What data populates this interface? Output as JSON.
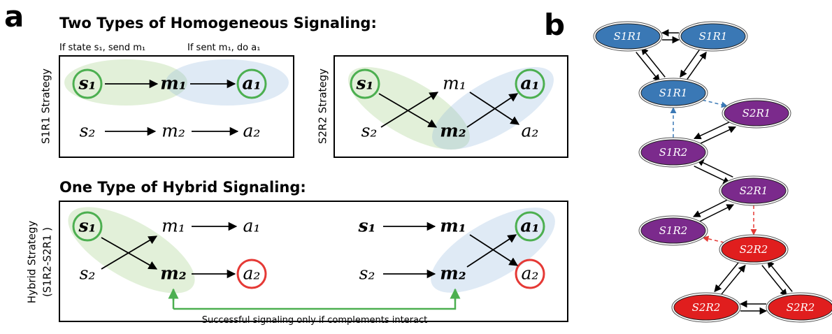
{
  "panel_a": {
    "label": "a",
    "homogeneous_title": "Two Types of Homogeneous Signaling:",
    "annotations": [
      "If state s₁, send m₁",
      "If sent m₁, do a₁"
    ],
    "s1r1": {
      "side_label": "S1R1 Strategy",
      "nodes": [
        "s₁",
        "m₁",
        "a₁",
        "s₂",
        "m₂",
        "a₂"
      ]
    },
    "s2r2": {
      "side_label": "S2R2 Strategy",
      "nodes": [
        "s₁",
        "m₁",
        "a₁",
        "s₂",
        "m₂",
        "a₂"
      ]
    },
    "hybrid_title": "One Type of Hybrid Signaling:",
    "hybrid": {
      "side_label": [
        "Hybrid Strategy",
        "(S1R2-S2R1 )"
      ],
      "left_nodes": [
        "s₁",
        "m₁",
        "a₁",
        "s₂",
        "m₂",
        "a₂"
      ],
      "right_nodes": [
        "s₁",
        "m₁",
        "a₁",
        "s₂",
        "m₂",
        "a₂"
      ],
      "note": "Successful signaling only if complements interact"
    }
  },
  "panel_b": {
    "label": "b",
    "nodes": [
      "S1R1",
      "S1R1",
      "S1R1",
      "S2R1",
      "S1R2",
      "S2R1",
      "S1R2",
      "S2R2",
      "S2R2",
      "S2R2"
    ]
  }
}
